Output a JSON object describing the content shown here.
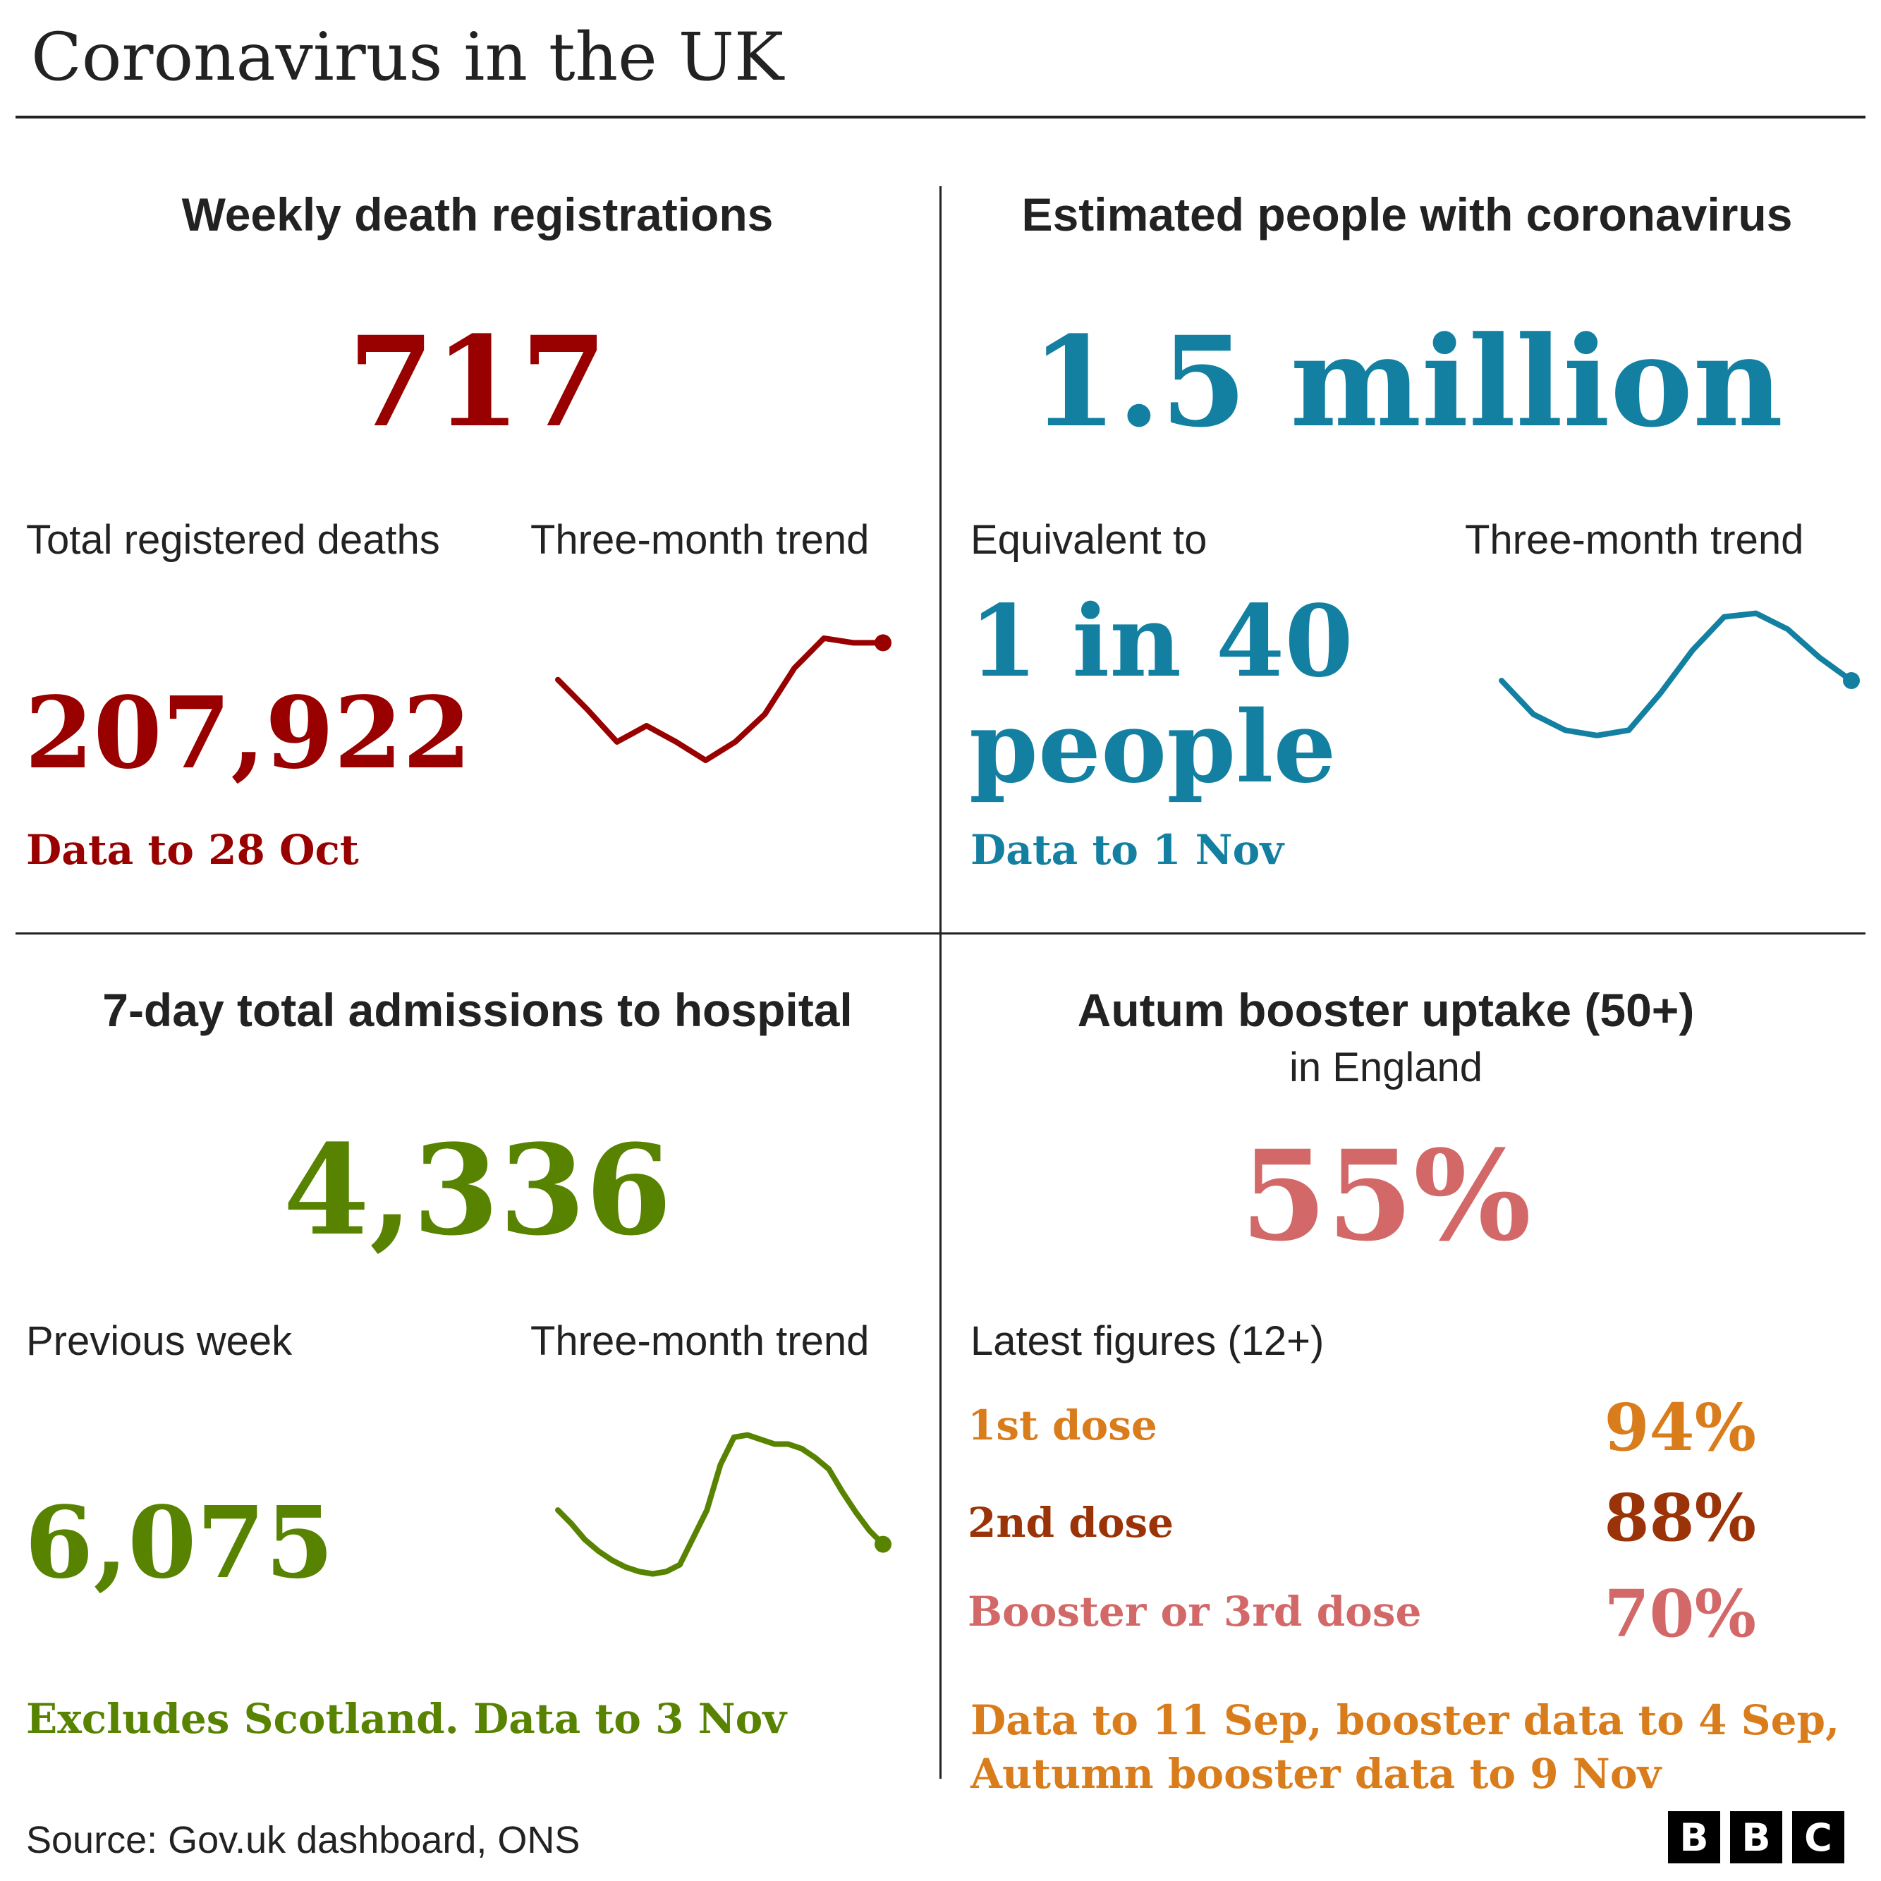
{
  "title": "Coronavirus in the UK",
  "colors": {
    "deaths": "#990000",
    "cases": "#1380A1",
    "hospital": "#588300",
    "booster": "#D26867",
    "first_dose": "#D97C1B",
    "second_dose": "#9A3307",
    "footnote_orange": "#D97C1B"
  },
  "deaths": {
    "heading": "Weekly death registrations",
    "value": "717",
    "total_label": "Total registered deaths",
    "total_value": "207,922",
    "trend_label": "Three-month trend",
    "note": "Data to 28 Oct"
  },
  "cases": {
    "heading": "Estimated people with coronavirus",
    "value": "1.5 million",
    "equiv_label": "Equivalent to",
    "equiv_line1": "1 in 40",
    "equiv_line2": "people",
    "trend_label": "Three-month trend",
    "note": "Data to 1 Nov"
  },
  "hospital": {
    "heading": "7-day total admissions to hospital",
    "value": "4,336",
    "prev_label": "Previous week",
    "prev_value": "6,075",
    "trend_label": "Three-month trend",
    "note": "Excludes Scotland. Data to 3 Nov"
  },
  "booster": {
    "heading": "Autum booster uptake (50+)",
    "subheading": "in England",
    "value": "55%",
    "latest_label": "Latest figures (12+)",
    "doses": [
      {
        "label": "1st dose",
        "value": "94%"
      },
      {
        "label": "2nd dose",
        "value": "88%"
      },
      {
        "label": "Booster or 3rd dose",
        "value": "70%"
      }
    ],
    "note_line1": "Data to 11 Sep, booster data to 4 Sep,",
    "note_line2": "Autumn booster data to 9 Nov"
  },
  "source": "Source: Gov.uk dashboard, ONS",
  "logo": [
    "B",
    "B",
    "C"
  ],
  "chart_data": [
    {
      "type": "line",
      "name": "deaths-trend",
      "x": [
        1,
        2,
        3,
        4,
        5,
        6,
        7,
        8,
        9,
        10,
        11,
        12
      ],
      "y": [
        0.35,
        0.22,
        0.08,
        0.15,
        0.08,
        0.0,
        0.08,
        0.2,
        0.4,
        0.53,
        0.51,
        0.51
      ],
      "ylim": [
        0,
        0.6
      ],
      "title": "",
      "xlabel": "",
      "ylabel": ""
    },
    {
      "type": "line",
      "name": "cases-trend",
      "x": [
        1,
        2,
        3,
        4,
        5,
        6,
        7,
        8,
        9,
        10,
        11,
        12
      ],
      "y": [
        0.45,
        0.26,
        0.17,
        0.14,
        0.17,
        0.38,
        0.62,
        0.81,
        0.83,
        0.74,
        0.58,
        0.45
      ],
      "ylim": [
        0,
        0.9
      ],
      "title": "",
      "xlabel": "",
      "ylabel": ""
    },
    {
      "type": "line",
      "name": "hospital-trend",
      "x": [
        1,
        2,
        3,
        4,
        5,
        6,
        7,
        8,
        9,
        10,
        11,
        12,
        13,
        14,
        15,
        16,
        17,
        18,
        19,
        20,
        21,
        22,
        23,
        24,
        25
      ],
      "y": [
        0.3,
        0.24,
        0.17,
        0.12,
        0.08,
        0.05,
        0.03,
        0.02,
        0.03,
        0.06,
        0.18,
        0.3,
        0.5,
        0.62,
        0.63,
        0.61,
        0.59,
        0.59,
        0.57,
        0.53,
        0.48,
        0.38,
        0.29,
        0.21,
        0.15
      ],
      "ylim": [
        0,
        0.7
      ],
      "title": "",
      "xlabel": "",
      "ylabel": ""
    }
  ]
}
